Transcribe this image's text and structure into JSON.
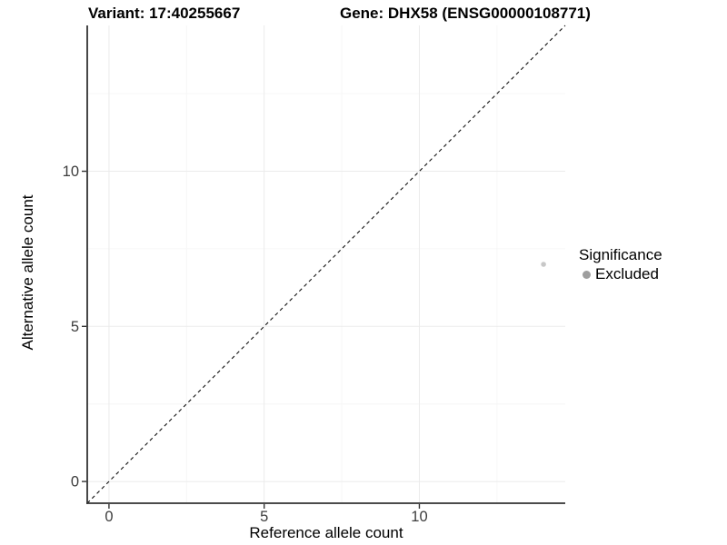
{
  "titles": {
    "variant": "Variant: 17:40255667",
    "gene": "Gene: DHX58 (ENSG00000108771)"
  },
  "chart_data": {
    "type": "scatter",
    "title_left": "Variant: 17:40255667",
    "title_right": "Gene: DHX58 (ENSG00000108771)",
    "xlabel": "Reference allele count",
    "ylabel": "Alternative allele count",
    "xlim": [
      -0.7,
      14.7
    ],
    "ylim": [
      -0.7,
      14.7
    ],
    "x_ticks": [
      0,
      5,
      10
    ],
    "y_ticks": [
      0,
      5,
      10
    ],
    "x_minor_ticks": [
      2.5,
      7.5,
      12.5
    ],
    "y_minor_ticks": [
      2.5,
      7.5,
      12.5
    ],
    "grid": true,
    "points": [
      {
        "x": 14,
        "y": 7,
        "series": "Excluded",
        "color": "#c8c8c8",
        "radius": 2.8
      }
    ],
    "reference_line": {
      "type": "identity",
      "equation": "y = x",
      "style": "dashed",
      "color": "#111111"
    },
    "legend": {
      "position": "right",
      "title": "Significance",
      "items": [
        {
          "label": "Excluded",
          "color": "#9e9e9e"
        }
      ]
    }
  },
  "colors": {
    "background": "#ffffff",
    "grid_major": "#ebebeb",
    "grid_minor": "#f6f6f6",
    "axis_line": "#333333",
    "tick_label": "#3d3d3d",
    "title_text": "#000000"
  }
}
